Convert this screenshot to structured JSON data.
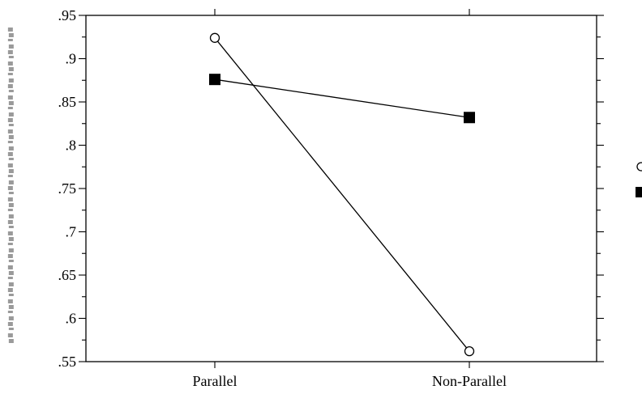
{
  "chart_data": {
    "type": "line",
    "title": "",
    "xlabel": "",
    "ylabel": "",
    "categories": [
      "Parallel",
      "Non-Parallel"
    ],
    "ylim": [
      0.55,
      0.95
    ],
    "yticks": [
      ".55",
      ".6",
      ".65",
      ".7",
      ".75",
      ".8",
      ".85",
      ".9",
      ".95"
    ],
    "grid": false,
    "legend": "right, partially visible",
    "series": [
      {
        "marker": "open-circle",
        "values": [
          0.924,
          0.562
        ]
      },
      {
        "marker": "filled-square",
        "values": [
          0.876,
          0.832
        ]
      }
    ],
    "colors": {
      "line": "#000000",
      "marker_fill": "#000000",
      "background": "#ffffff"
    }
  }
}
